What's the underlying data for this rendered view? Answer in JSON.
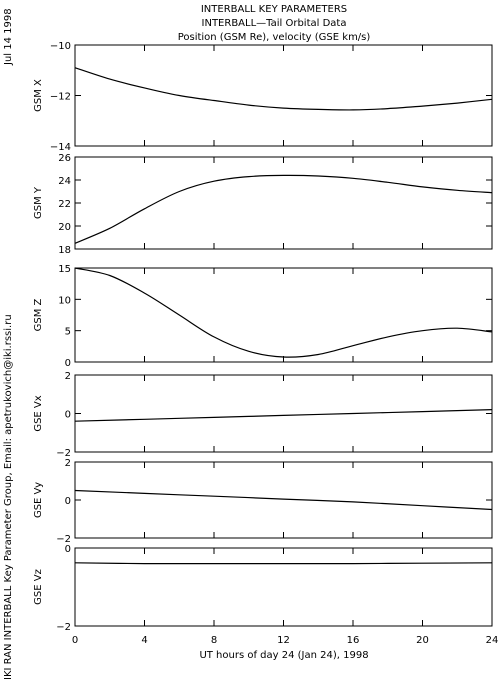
{
  "header": {
    "title_lines": [
      "INTERBALL KEY PARAMETERS",
      "INTERBALL—Tail Orbital Data",
      "Position (GSM Re), velocity (GSE km/s)"
    ]
  },
  "side_text": {
    "date": "Jul 14 1998",
    "credit": "IKI RAN INTERBALL Key Parameter Group, Email: apetrukovich@iki.rssi.ru"
  },
  "chart_data": {
    "type": "line",
    "x_label": "UT hours of day  24 (Jan 24), 1998",
    "x_range": [
      0,
      24
    ],
    "x_ticks": [
      0,
      4,
      8,
      12,
      16,
      20,
      24
    ],
    "x_tick_labels": [
      "0",
      "4",
      "8",
      "12",
      "16",
      "20",
      "24"
    ],
    "panels": [
      {
        "ylabel": "GSM X",
        "ylim": [
          -14,
          -10
        ],
        "yticks": [
          -14,
          -12,
          -10
        ],
        "ytick_labels": [
          "−14",
          "−12",
          "−10"
        ],
        "x": [
          0,
          2,
          4,
          6,
          8,
          10,
          12,
          14,
          16,
          18,
          20,
          22,
          24
        ],
        "y": [
          -10.9,
          -11.35,
          -11.7,
          -12.0,
          -12.2,
          -12.38,
          -12.5,
          -12.55,
          -12.57,
          -12.52,
          -12.42,
          -12.3,
          -12.15
        ]
      },
      {
        "ylabel": "GSM Y",
        "ylim": [
          18,
          26
        ],
        "yticks": [
          18,
          20,
          22,
          24,
          26
        ],
        "ytick_labels": [
          "18",
          "20",
          "22",
          "24",
          "26"
        ],
        "x": [
          0,
          2,
          4,
          6,
          8,
          10,
          12,
          14,
          16,
          18,
          20,
          22,
          24
        ],
        "y": [
          18.5,
          19.8,
          21.5,
          23.0,
          23.9,
          24.3,
          24.4,
          24.35,
          24.15,
          23.8,
          23.4,
          23.1,
          22.9
        ]
      },
      {
        "ylabel": "GSM Z",
        "ylim": [
          0,
          15
        ],
        "yticks": [
          0,
          5,
          10,
          15
        ],
        "ytick_labels": [
          "0",
          "5",
          "10",
          "15"
        ],
        "x": [
          0,
          2,
          4,
          6,
          8,
          10,
          12,
          14,
          16,
          18,
          20,
          22,
          24
        ],
        "y": [
          15,
          13.8,
          11.0,
          7.5,
          4.0,
          1.7,
          0.8,
          1.2,
          2.6,
          4.0,
          5.0,
          5.4,
          4.8
        ]
      },
      {
        "ylabel": "GSE Vx",
        "ylim": [
          -2,
          2
        ],
        "yticks": [
          -2,
          0,
          2
        ],
        "ytick_labels": [
          "−2",
          "0",
          "2"
        ],
        "x": [
          0,
          4,
          8,
          12,
          16,
          20,
          24
        ],
        "y": [
          -0.4,
          -0.3,
          -0.2,
          -0.1,
          0.0,
          0.1,
          0.2
        ]
      },
      {
        "ylabel": "GSE Vy",
        "ylim": [
          -2,
          2
        ],
        "yticks": [
          -2,
          0,
          2
        ],
        "ytick_labels": [
          "−2",
          "0",
          "2"
        ],
        "x": [
          0,
          4,
          8,
          12,
          16,
          20,
          24
        ],
        "y": [
          0.5,
          0.35,
          0.2,
          0.05,
          -0.1,
          -0.3,
          -0.5
        ]
      },
      {
        "ylabel": "GSE Vz",
        "ylim": [
          -2,
          0
        ],
        "yticks": [
          -2,
          0
        ],
        "ytick_labels": [
          "−2",
          "0"
        ],
        "x": [
          0,
          4,
          8,
          12,
          16,
          20,
          24
        ],
        "y": [
          -0.38,
          -0.4,
          -0.4,
          -0.4,
          -0.4,
          -0.39,
          -0.38
        ]
      }
    ]
  }
}
